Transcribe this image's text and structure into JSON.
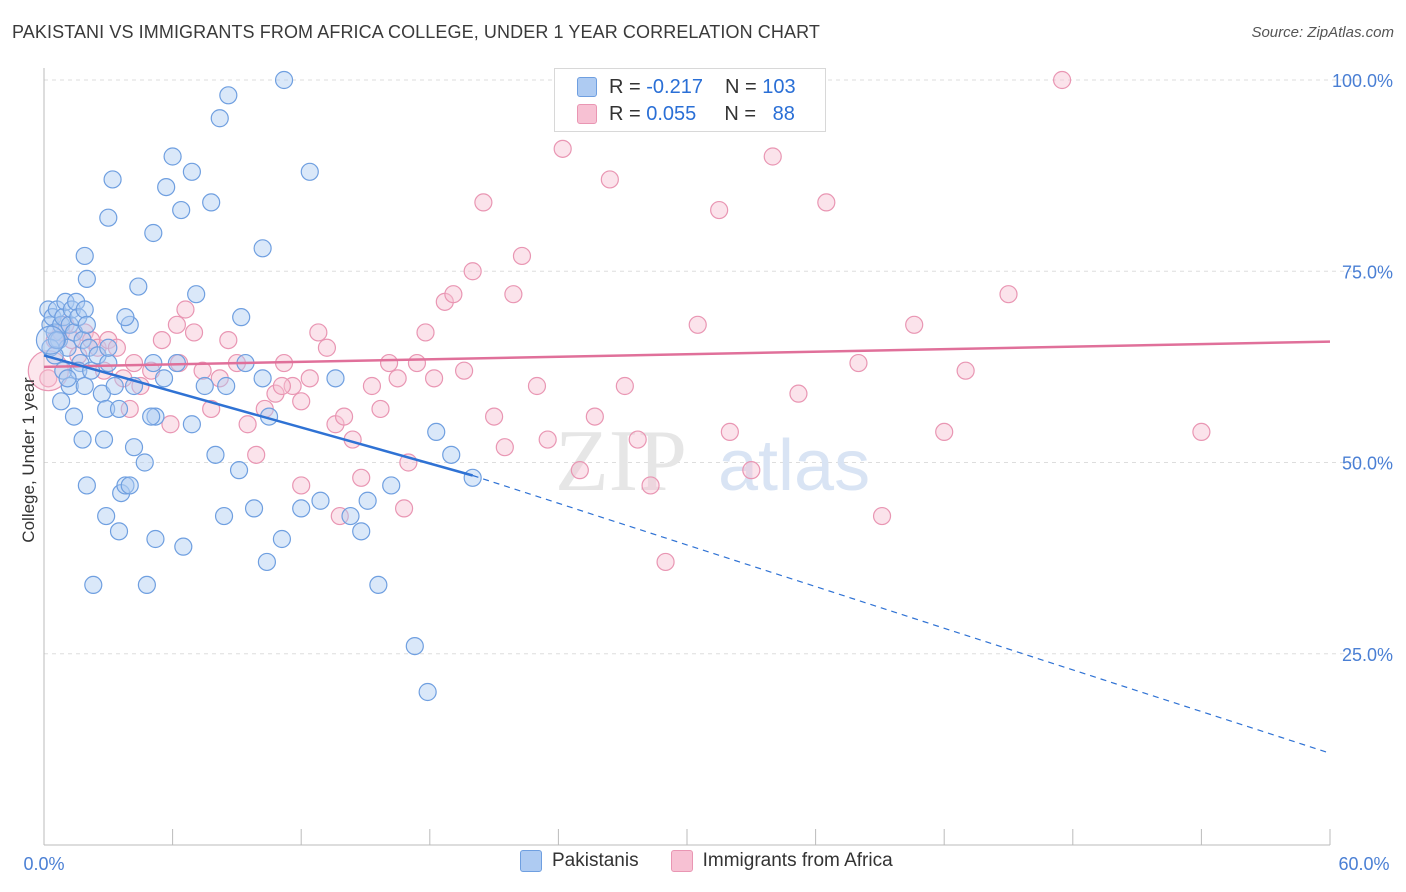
{
  "title": "PAKISTANI VS IMMIGRANTS FROM AFRICA COLLEGE, UNDER 1 YEAR CORRELATION CHART",
  "source": "Source: ZipAtlas.com",
  "watermark": {
    "zip": "ZIP",
    "atlas": "atlas"
  },
  "legend": {
    "rows": [
      {
        "r_label": "R = ",
        "r_value": "-0.217",
        "n_label": "N = ",
        "n_value": "103"
      },
      {
        "r_label": "R = ",
        "r_value": "0.055",
        "n_label": "N = ",
        "n_value": "88"
      }
    ]
  },
  "colors": {
    "blue_fill": "#aecbf2",
    "blue_stroke": "#6f9fe0",
    "blue_line": "#2f72d4",
    "pink_fill": "#f7c1d3",
    "pink_stroke": "#e996b3",
    "pink_line": "#e0709a",
    "tick_color": "#4a7fd4",
    "grid": "#dddddd"
  },
  "chart_data": {
    "type": "scatter",
    "title": "PAKISTANI VS IMMIGRANTS FROM AFRICA COLLEGE, UNDER 1 YEAR CORRELATION CHART",
    "xlabel": "",
    "ylabel": "College, Under 1 year",
    "xlim": [
      0,
      60
    ],
    "ylim": [
      0,
      100
    ],
    "x_tick_labels": [
      "0.0%",
      "60.0%"
    ],
    "y_ticks": [
      25,
      50,
      75,
      100
    ],
    "y_tick_labels": [
      "25.0%",
      "50.0%",
      "75.0%",
      "100.0%"
    ],
    "legend_position": "bottom-center",
    "series": [
      {
        "name": "Pakistanis",
        "color": "#aecbf2",
        "r": -0.217,
        "n": 103,
        "trend": {
          "x": [
            0,
            20
          ],
          "y": [
            64,
            48.3
          ]
        },
        "trend_extended": {
          "x": [
            20,
            60
          ],
          "y": [
            48.3,
            12
          ]
        },
        "points": [
          [
            0.2,
            70
          ],
          [
            0.3,
            68
          ],
          [
            0.4,
            69
          ],
          [
            0.5,
            67
          ],
          [
            0.6,
            70
          ],
          [
            0.7,
            66
          ],
          [
            0.8,
            68
          ],
          [
            0.9,
            69
          ],
          [
            1.0,
            71
          ],
          [
            1.1,
            65
          ],
          [
            1.2,
            68
          ],
          [
            1.3,
            70
          ],
          [
            1.4,
            67
          ],
          [
            1.5,
            71
          ],
          [
            1.6,
            69
          ],
          [
            1.7,
            63
          ],
          [
            1.8,
            66
          ],
          [
            1.9,
            70
          ],
          [
            2.0,
            68
          ],
          [
            2.1,
            65
          ],
          [
            0.3,
            65
          ],
          [
            0.5,
            64
          ],
          [
            0.6,
            66
          ],
          [
            0.9,
            62
          ],
          [
            1.2,
            60
          ],
          [
            1.4,
            56
          ],
          [
            1.6,
            62
          ],
          [
            1.9,
            60
          ],
          [
            2.2,
            62
          ],
          [
            2.5,
            64
          ],
          [
            2.7,
            59
          ],
          [
            2.9,
            57
          ],
          [
            3.0,
            63
          ],
          [
            3.3,
            60
          ],
          [
            3.5,
            57
          ],
          [
            1.8,
            53
          ],
          [
            2.0,
            47
          ],
          [
            2.8,
            53
          ],
          [
            2.9,
            43
          ],
          [
            3.5,
            41
          ],
          [
            3.6,
            46
          ],
          [
            3.8,
            47
          ],
          [
            4.0,
            47
          ],
          [
            4.2,
            52
          ],
          [
            4.7,
            50
          ],
          [
            5.1,
            63
          ],
          [
            5.2,
            56
          ],
          [
            5.6,
            61
          ],
          [
            6.2,
            63
          ],
          [
            7.5,
            60
          ],
          [
            8.5,
            60
          ],
          [
            9.4,
            63
          ],
          [
            10.2,
            61
          ],
          [
            10.5,
            56
          ],
          [
            12.0,
            44
          ],
          [
            12.9,
            45
          ],
          [
            13.6,
            61
          ],
          [
            14.3,
            43
          ],
          [
            15.6,
            34
          ],
          [
            16.2,
            47
          ],
          [
            17.3,
            26
          ],
          [
            17.9,
            20
          ],
          [
            19.0,
            51
          ],
          [
            20.0,
            48
          ],
          [
            18.3,
            54
          ],
          [
            15.1,
            45
          ],
          [
            14.8,
            41
          ],
          [
            6.5,
            39
          ],
          [
            6.9,
            55
          ],
          [
            8.0,
            51
          ],
          [
            8.4,
            43
          ],
          [
            9.1,
            49
          ],
          [
            9.8,
            44
          ],
          [
            10.4,
            37
          ],
          [
            11.1,
            40
          ],
          [
            4.8,
            34
          ],
          [
            5.2,
            40
          ],
          [
            2.3,
            34
          ],
          [
            2.0,
            74
          ],
          [
            1.9,
            77
          ],
          [
            3.0,
            82
          ],
          [
            3.2,
            87
          ],
          [
            4.0,
            68
          ],
          [
            4.4,
            73
          ],
          [
            5.1,
            80
          ],
          [
            5.7,
            86
          ],
          [
            6.0,
            90
          ],
          [
            6.4,
            83
          ],
          [
            6.9,
            88
          ],
          [
            7.1,
            72
          ],
          [
            7.8,
            84
          ],
          [
            8.2,
            95
          ],
          [
            8.6,
            98
          ],
          [
            9.2,
            69
          ],
          [
            10.2,
            78
          ],
          [
            11.2,
            100
          ],
          [
            12.4,
            88
          ],
          [
            3.0,
            65
          ],
          [
            3.8,
            69
          ],
          [
            4.2,
            60
          ],
          [
            5.0,
            56
          ],
          [
            1.1,
            61
          ],
          [
            0.8,
            58
          ]
        ]
      },
      {
        "name": "Immigrants from Africa",
        "color": "#f7c1d3",
        "r": 0.055,
        "n": 88,
        "trend": {
          "x": [
            0,
            60
          ],
          "y": [
            62.5,
            65.8
          ]
        },
        "points": [
          [
            0.2,
            61
          ],
          [
            0.5,
            66
          ],
          [
            0.8,
            67
          ],
          [
            1.0,
            68
          ],
          [
            1.3,
            66
          ],
          [
            1.6,
            64
          ],
          [
            1.9,
            67
          ],
          [
            2.2,
            66
          ],
          [
            2.5,
            65
          ],
          [
            2.8,
            62
          ],
          [
            3.0,
            66
          ],
          [
            3.4,
            65
          ],
          [
            3.7,
            61
          ],
          [
            4.0,
            57
          ],
          [
            4.5,
            60
          ],
          [
            5.0,
            62
          ],
          [
            5.5,
            66
          ],
          [
            5.9,
            55
          ],
          [
            6.3,
            63
          ],
          [
            6.6,
            70
          ],
          [
            7.0,
            67
          ],
          [
            7.4,
            62
          ],
          [
            7.8,
            57
          ],
          [
            8.2,
            61
          ],
          [
            8.6,
            66
          ],
          [
            9.0,
            63
          ],
          [
            9.5,
            55
          ],
          [
            9.9,
            51
          ],
          [
            10.3,
            57
          ],
          [
            10.8,
            59
          ],
          [
            11.2,
            63
          ],
          [
            11.6,
            60
          ],
          [
            12.0,
            58
          ],
          [
            12.4,
            61
          ],
          [
            12.8,
            67
          ],
          [
            13.2,
            65
          ],
          [
            13.6,
            55
          ],
          [
            14.0,
            56
          ],
          [
            14.4,
            53
          ],
          [
            14.8,
            48
          ],
          [
            15.3,
            60
          ],
          [
            15.7,
            57
          ],
          [
            16.1,
            63
          ],
          [
            16.5,
            61
          ],
          [
            17.0,
            50
          ],
          [
            17.4,
            63
          ],
          [
            17.8,
            67
          ],
          [
            18.2,
            61
          ],
          [
            18.7,
            71
          ],
          [
            19.1,
            72
          ],
          [
            19.6,
            62
          ],
          [
            20.0,
            75
          ],
          [
            20.5,
            84
          ],
          [
            21.0,
            56
          ],
          [
            21.5,
            52
          ],
          [
            21.9,
            72
          ],
          [
            22.3,
            77
          ],
          [
            23.0,
            60
          ],
          [
            23.5,
            53
          ],
          [
            24.2,
            91
          ],
          [
            25.0,
            49
          ],
          [
            25.7,
            56
          ],
          [
            26.4,
            87
          ],
          [
            27.1,
            60
          ],
          [
            27.7,
            53
          ],
          [
            28.3,
            47
          ],
          [
            29.0,
            37
          ],
          [
            30.5,
            68
          ],
          [
            31.5,
            83
          ],
          [
            32.0,
            54
          ],
          [
            33.0,
            49
          ],
          [
            34.0,
            90
          ],
          [
            35.2,
            59
          ],
          [
            36.5,
            84
          ],
          [
            38.0,
            63
          ],
          [
            39.1,
            43
          ],
          [
            40.6,
            68
          ],
          [
            42.0,
            54
          ],
          [
            43.0,
            62
          ],
          [
            45.0,
            72
          ],
          [
            47.5,
            100
          ],
          [
            54.0,
            54
          ],
          [
            11.1,
            60
          ],
          [
            12.0,
            47
          ],
          [
            13.8,
            43
          ],
          [
            16.8,
            44
          ],
          [
            4.2,
            63
          ],
          [
            6.2,
            68
          ]
        ]
      }
    ]
  }
}
